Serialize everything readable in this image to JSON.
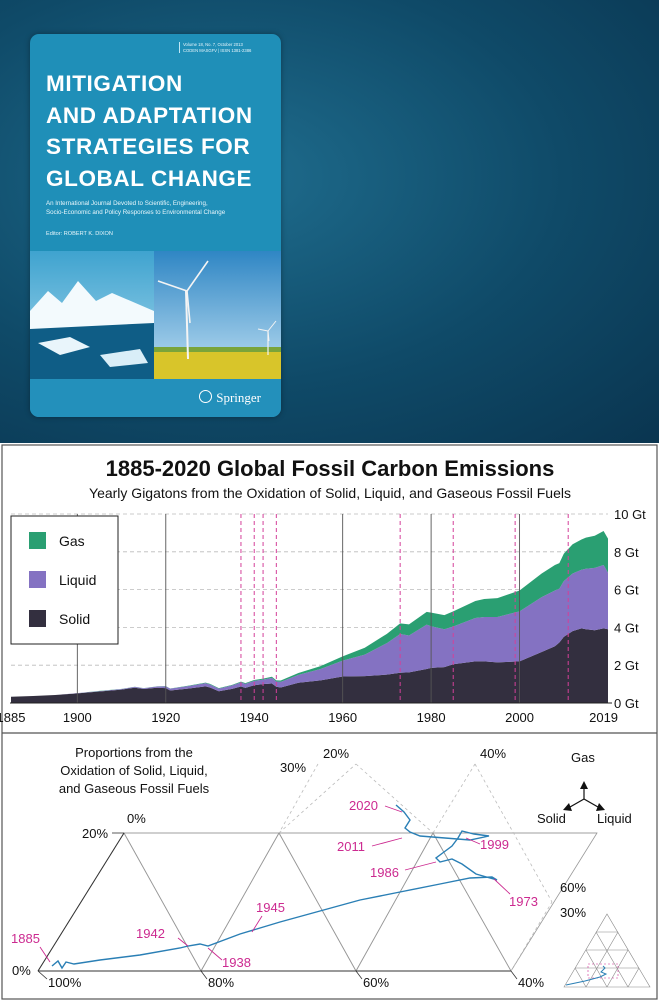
{
  "cover": {
    "issue_line1": "Volume 18, No. 7, October 2013",
    "issue_line2": "CODEN MASGFV | ISSN 1381-2386",
    "title_lines": [
      "MITIGATION",
      "AND ADAPTATION",
      "STRATEGIES FOR",
      "GLOBAL CHANGE"
    ],
    "subtitle_line1": "An International Journal Devoted to Scientific, Engineering,",
    "subtitle_line2": "Socio-Economic and Policy Responses to Environmental Change",
    "editor": "Editor: ROBERT K. DIXON",
    "publisher": "Springer"
  },
  "chart_data": [
    {
      "type": "area",
      "stacked": true,
      "title": "1885-2020 Global Fossil Carbon Emissions",
      "subtitle": "Yearly Gigatons from the Oxidation of Solid, Liquid, and Gaseous Fossil Fuels",
      "x_ticks": [
        "1885",
        "1900",
        "1920",
        "1940",
        "1960",
        "1980",
        "2000",
        "2019"
      ],
      "y_ticks": [
        "0 Gt",
        "2 Gt",
        "4 Gt",
        "6 Gt",
        "8 Gt",
        "10 Gt"
      ],
      "xlim": [
        1885,
        2020
      ],
      "ylim": [
        0,
        10
      ],
      "grid": "horizontal dashed",
      "legend_position": "top-left",
      "legend": [
        "Gas",
        "Liquid",
        "Solid"
      ],
      "colors": {
        "Gas": "#2a9f72",
        "Liquid": "#8472c2",
        "Solid": "#332f3f"
      },
      "x": [
        1885,
        1890,
        1895,
        1900,
        1905,
        1910,
        1913,
        1915,
        1918,
        1920,
        1921,
        1925,
        1929,
        1930,
        1932,
        1935,
        1937,
        1938,
        1940,
        1942,
        1944,
        1945,
        1946,
        1950,
        1955,
        1960,
        1965,
        1970,
        1973,
        1975,
        1979,
        1980,
        1983,
        1985,
        1990,
        1992,
        1995,
        2000,
        2005,
        2008,
        2009,
        2010,
        2012,
        2014,
        2015,
        2017,
        2019,
        2020
      ],
      "series": [
        {
          "name": "Solid",
          "values": [
            0.33,
            0.37,
            0.42,
            0.51,
            0.61,
            0.71,
            0.81,
            0.74,
            0.81,
            0.79,
            0.66,
            0.76,
            0.88,
            0.82,
            0.62,
            0.75,
            0.87,
            0.8,
            0.94,
            1.0,
            1.03,
            0.86,
            0.82,
            1.07,
            1.2,
            1.4,
            1.42,
            1.5,
            1.6,
            1.62,
            1.8,
            1.86,
            1.9,
            2.05,
            2.2,
            2.2,
            2.15,
            2.2,
            2.7,
            3.0,
            3.2,
            3.5,
            3.8,
            3.95,
            3.9,
            3.85,
            3.95,
            3.9
          ]
        },
        {
          "name": "Liquid",
          "values": [
            0.0,
            0.0,
            0.0,
            0.01,
            0.02,
            0.03,
            0.04,
            0.04,
            0.06,
            0.09,
            0.1,
            0.13,
            0.17,
            0.16,
            0.14,
            0.18,
            0.22,
            0.21,
            0.23,
            0.24,
            0.3,
            0.28,
            0.3,
            0.42,
            0.6,
            0.84,
            1.14,
            1.67,
            2.05,
            1.95,
            2.35,
            2.2,
            2.0,
            2.0,
            2.3,
            2.35,
            2.4,
            2.65,
            2.9,
            2.95,
            2.85,
            2.95,
            3.05,
            3.1,
            3.2,
            3.3,
            3.35,
            3.0
          ]
        },
        {
          "name": "Gas",
          "values": [
            0.0,
            0.0,
            0.0,
            0.0,
            0.01,
            0.01,
            0.01,
            0.01,
            0.01,
            0.01,
            0.01,
            0.02,
            0.03,
            0.03,
            0.03,
            0.03,
            0.04,
            0.04,
            0.05,
            0.05,
            0.06,
            0.06,
            0.07,
            0.1,
            0.15,
            0.23,
            0.36,
            0.49,
            0.56,
            0.59,
            0.67,
            0.72,
            0.75,
            0.8,
            0.9,
            0.95,
            1.0,
            1.1,
            1.25,
            1.35,
            1.35,
            1.45,
            1.55,
            1.6,
            1.65,
            1.7,
            1.8,
            1.8
          ]
        }
      ],
      "marker_years": [
        1937,
        1940,
        1942,
        1945,
        1973,
        1985,
        1999,
        2011
      ]
    },
    {
      "type": "ternary",
      "title": "Proportions from the Oxidation of Solid, Liquid, and Gaseous Fossil Fuels",
      "axes": {
        "top": "Gas",
        "left": "Solid",
        "right": "Liquid"
      },
      "tick_labels": {
        "gas_axis": [
          "0%",
          "20%",
          "30%"
        ],
        "liquid_axis": [
          "0%",
          "20%",
          "40%",
          "60%"
        ],
        "solid_axis": [
          "100%",
          "80%",
          "60%",
          "40%",
          "30%"
        ]
      },
      "path": [
        {
          "year": "1885",
          "gas": 0.0,
          "liquid": 0.0
        },
        {
          "year": "1938",
          "gas": 0.035,
          "liquid": 0.19
        },
        {
          "year": "1942",
          "gas": 0.035,
          "liquid": 0.19
        },
        {
          "year": "1945",
          "gas": 0.05,
          "liquid": 0.22
        },
        {
          "year": "1973",
          "gas": 0.12,
          "liquid": 0.48
        },
        {
          "year": "1986",
          "gas": 0.16,
          "liquid": 0.41
        },
        {
          "year": "1999",
          "gas": 0.19,
          "liquid": 0.44
        },
        {
          "year": "2011",
          "gas": 0.19,
          "liquid": 0.36
        },
        {
          "year": "2020",
          "gas": 0.23,
          "liquid": 0.37
        }
      ],
      "labeled_years": [
        "1885",
        "1938",
        "1942",
        "1945",
        "1973",
        "1986",
        "1999",
        "2011",
        "2020"
      ]
    }
  ]
}
